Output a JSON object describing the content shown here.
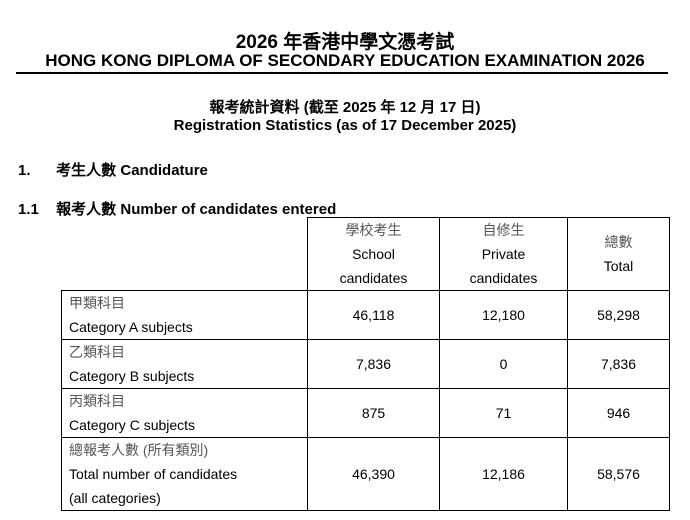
{
  "header": {
    "title_zh": "2026 年香港中學文憑考試",
    "title_en": "HONG KONG DIPLOMA OF SECONDARY EDUCATION EXAMINATION 2026",
    "subtitle_zh": "報考統計資料 (截至 2025 年 12 月 17 日)",
    "subtitle_en": "Registration Statistics (as of 17 December 2025)"
  },
  "section1": {
    "number": "1.",
    "title_zh": "考生人數",
    "title_en": "Candidature"
  },
  "section1_1": {
    "number": "1.1",
    "title_zh": "報考人數",
    "title_en": "Number of candidates entered"
  },
  "table": {
    "columns": [
      {
        "zh": "學校考生",
        "en1": "School",
        "en2": "candidates"
      },
      {
        "zh": "自修生",
        "en1": "Private",
        "en2": "candidates"
      },
      {
        "zh": "總數",
        "en1": "Total"
      }
    ],
    "rows": [
      {
        "zh": "甲類科目",
        "en": "Category A subjects",
        "values": [
          "46,118",
          "12,180",
          "58,298"
        ]
      },
      {
        "zh": "乙類科目",
        "en": "Category B subjects",
        "values": [
          "7,836",
          "0",
          "7,836"
        ]
      },
      {
        "zh": "丙類科目",
        "en": "Category C subjects",
        "values": [
          "875",
          "71",
          "946"
        ]
      },
      {
        "zh": "總報考人數 (所有類別)",
        "en": "Total number of candidates",
        "en2": "(all categories)",
        "values": [
          "46,390",
          "12,186",
          "58,576"
        ]
      }
    ]
  }
}
